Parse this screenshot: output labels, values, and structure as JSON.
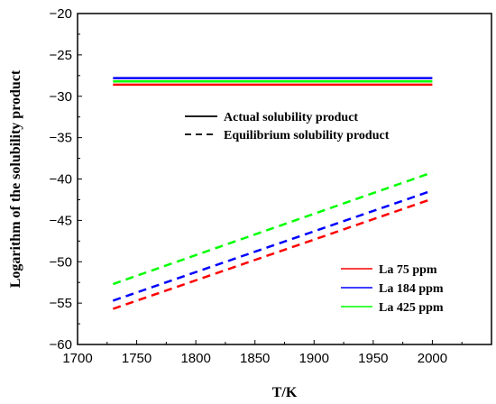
{
  "chart_data": {
    "type": "line",
    "xlabel": "T/K",
    "ylabel": "Logarithm of the solubility product",
    "xlim": [
      1700,
      2050
    ],
    "ylim": [
      -60,
      -20
    ],
    "xticks": [
      1700,
      1750,
      1800,
      1850,
      1900,
      1950,
      2000
    ],
    "yticks": [
      -60,
      -55,
      -50,
      -45,
      -40,
      -35,
      -30,
      -25,
      -20
    ],
    "grid": false,
    "style_legend": {
      "placement": "upper-center",
      "entries": [
        {
          "label": "Actual solubility product",
          "dash": "solid"
        },
        {
          "label": "Equilibrium solubility product",
          "dash": "dashed"
        }
      ]
    },
    "color_legend": {
      "placement": "lower-right",
      "entries": [
        {
          "label": "La 75 ppm",
          "color": "#ff0000"
        },
        {
          "label": "La 184 ppm",
          "color": "#0000ff"
        },
        {
          "label": "La 425 ppm",
          "color": "#00ff00"
        }
      ]
    },
    "series": [
      {
        "group": "La 75 ppm",
        "dash": "solid",
        "color": "#ff0000",
        "x": [
          1730,
          2000
        ],
        "y": [
          -28.6,
          -28.6
        ]
      },
      {
        "group": "La 425 ppm",
        "dash": "solid",
        "color": "#00ff00",
        "x": [
          1730,
          2000
        ],
        "y": [
          -28.2,
          -28.2
        ]
      },
      {
        "group": "La 184 ppm",
        "dash": "solid",
        "color": "#0000ff",
        "x": [
          1730,
          2000
        ],
        "y": [
          -27.8,
          -27.8
        ]
      },
      {
        "group": "La 425 ppm",
        "dash": "dashed",
        "color": "#00ff00",
        "x": [
          1730,
          2000
        ],
        "y": [
          -52.7,
          -39.2
        ]
      },
      {
        "group": "La 184 ppm",
        "dash": "dashed",
        "color": "#0000ff",
        "x": [
          1730,
          2000
        ],
        "y": [
          -54.7,
          -41.4
        ]
      },
      {
        "group": "La 75 ppm",
        "dash": "dashed",
        "color": "#ff0000",
        "x": [
          1730,
          2000
        ],
        "y": [
          -55.7,
          -42.4
        ]
      }
    ]
  }
}
